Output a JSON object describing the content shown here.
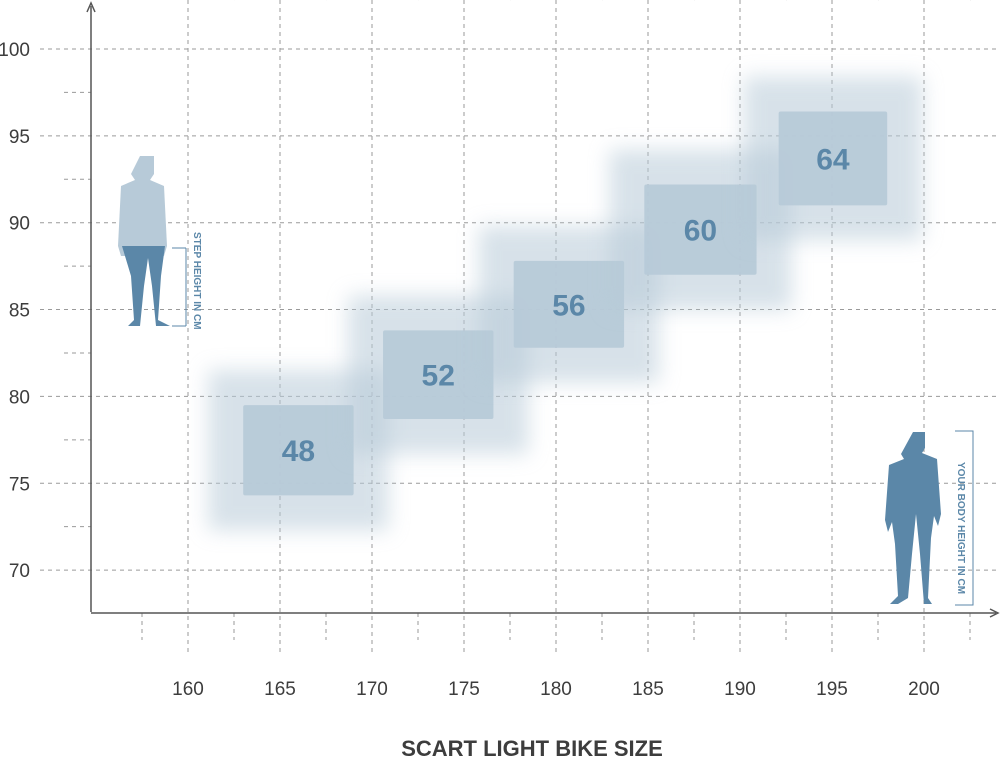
{
  "chart_data": {
    "type": "heatmap",
    "title": "",
    "xlabel": "SCART LIGHT BIKE SIZE",
    "ylabel": "",
    "xlim": [
      155,
      203
    ],
    "ylim": [
      67.5,
      103
    ],
    "x_ticks": [
      160,
      165,
      170,
      175,
      180,
      185,
      190,
      195,
      200
    ],
    "y_ticks": [
      70,
      75,
      80,
      85,
      90,
      95,
      100
    ],
    "grid": true,
    "annotations": {
      "step_height": "STEP HEIGHT IN CM",
      "body_height": "YOUR BODY HEIGHT IN CM"
    },
    "sizes": [
      {
        "label": "48",
        "body_height": [
          163,
          169
        ],
        "step_height": [
          74.3,
          79.5
        ]
      },
      {
        "label": "52",
        "body_height": [
          170.6,
          176.6
        ],
        "step_height": [
          78.7,
          83.8
        ]
      },
      {
        "label": "56",
        "body_height": [
          177.7,
          183.7
        ],
        "step_height": [
          82.8,
          87.8
        ]
      },
      {
        "label": "60",
        "body_height": [
          184.8,
          190.9
        ],
        "step_height": [
          87.0,
          92.2
        ]
      },
      {
        "label": "64",
        "body_height": [
          192.1,
          198
        ],
        "step_height": [
          91.0,
          96.4
        ]
      }
    ],
    "colors": {
      "box": "#b7cad8",
      "label": "#5b87a8",
      "figure_dark": "#5b87a8",
      "figure_light": "#b7cad8"
    }
  }
}
